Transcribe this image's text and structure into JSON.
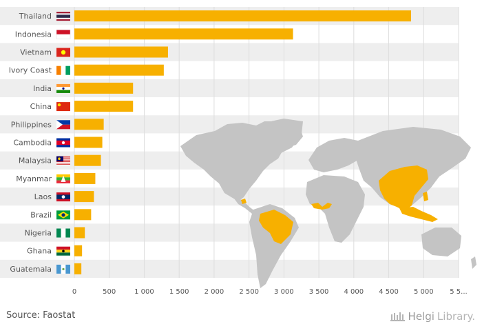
{
  "chart_data": {
    "type": "bar",
    "orientation": "horizontal",
    "categories": [
      "Thailand",
      "Indonesia",
      "Vietnam",
      "Ivory Coast",
      "India",
      "China",
      "Philippines",
      "Cambodia",
      "Malaysia",
      "Myanmar",
      "Laos",
      "Brazil",
      "Nigeria",
      "Ghana",
      "Guatemala"
    ],
    "values": [
      4820,
      3130,
      1340,
      1280,
      840,
      840,
      420,
      400,
      380,
      300,
      280,
      240,
      150,
      110,
      100
    ],
    "xlim": [
      0,
      5500
    ],
    "xticks": [
      "0",
      "500",
      "1 000",
      "1 500",
      "2 000",
      "2 500",
      "3 000",
      "3 500",
      "4 000",
      "4 500",
      "5 000",
      "5 5..."
    ],
    "grid": true,
    "bar_color": "#f7b000",
    "alt_row_color": "#eeeeee"
  },
  "flags": [
    "thailand-flag",
    "indonesia-flag",
    "vietnam-flag",
    "ivory-coast-flag",
    "india-flag",
    "china-flag",
    "philippines-flag",
    "cambodia-flag",
    "malaysia-flag",
    "myanmar-flag",
    "laos-flag",
    "brazil-flag",
    "nigeria-flag",
    "ghana-flag",
    "guatemala-flag"
  ],
  "footer": {
    "source": "Source: Faostat",
    "brand_part1": "Helgi",
    "brand_part2": "Library."
  },
  "map": {
    "land_color": "#c4c4c4",
    "highlight_color": "#f7b000"
  }
}
